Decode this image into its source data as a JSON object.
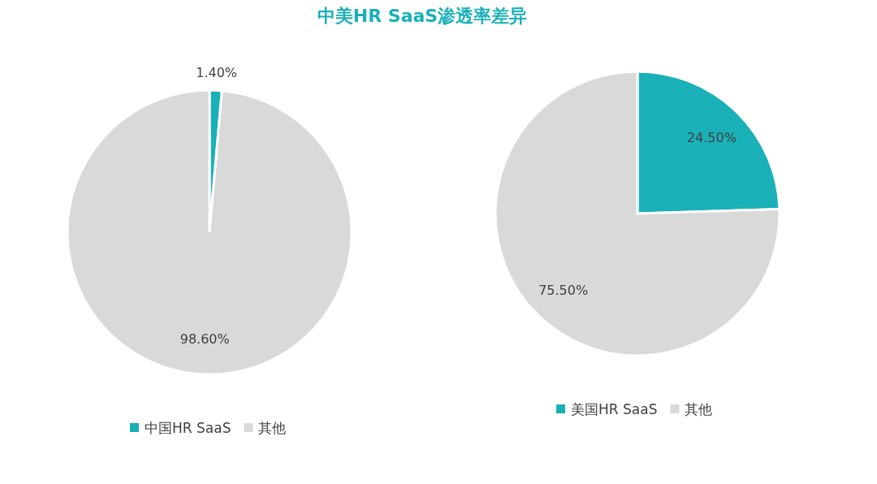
{
  "chart_data": [
    {
      "type": "pie",
      "title": "中美HR SaaS渗透率差异",
      "categories": [
        "中国HR SaaS",
        "其他"
      ],
      "values": [
        1.4,
        98.6
      ],
      "colors": [
        "#1ab0b8",
        "#d9d9d9"
      ],
      "value_labels": [
        "1.40%",
        "98.60%"
      ],
      "legend": "bottom"
    },
    {
      "type": "pie",
      "categories": [
        "美国HR SaaS",
        "其他"
      ],
      "values": [
        24.5,
        75.5
      ],
      "colors": [
        "#1ab0b8",
        "#d9d9d9"
      ],
      "value_labels": [
        "24.50%",
        "75.50%"
      ],
      "legend": "bottom"
    }
  ]
}
